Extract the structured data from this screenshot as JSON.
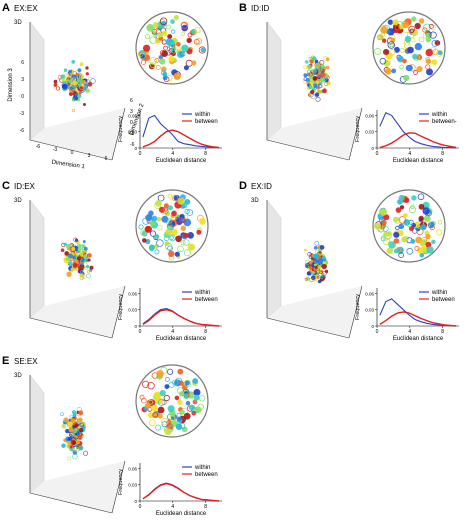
{
  "chart_data": [
    {
      "type": "scatter",
      "panel_label": "A",
      "title": "EX:EX",
      "view_tag": "3D",
      "axis3d": {
        "x_label": "Dimension 1",
        "y_label": "Dimension 2",
        "z_label": "Dimension 3",
        "x_ticks": [
          "-6",
          "-3",
          "0",
          "3",
          "6"
        ],
        "y_ticks": [
          "6",
          "3",
          "0",
          "-3",
          "-6"
        ],
        "z_ticks": [
          "-6",
          "-3",
          "0",
          "3",
          "6"
        ]
      },
      "histogram": {
        "xlabel": "Euclidean distance",
        "ylabel": "Frequency",
        "x_ticks": [
          "0",
          "4",
          "8"
        ],
        "y_ticks": [
          "0",
          "0.03",
          "0.06"
        ],
        "xlim": [
          0,
          10
        ],
        "ylim": [
          0,
          0.07
        ],
        "series": [
          {
            "name": "within",
            "color": "#3040c0",
            "values": [
              0.02,
              0.055,
              0.06,
              0.045,
              0.035,
              0.025,
              0.012,
              0.008,
              0.006,
              0.004,
              0.003,
              0.002,
              0.001,
              0.001
            ]
          },
          {
            "name": "between",
            "color": "#e02020",
            "values": [
              0.002,
              0.006,
              0.012,
              0.022,
              0.03,
              0.033,
              0.03,
              0.024,
              0.018,
              0.012,
              0.007,
              0.004,
              0.002,
              0.001
            ]
          }
        ]
      },
      "cloud": {
        "cx": 75,
        "cy": 85,
        "spread_x": 22,
        "spread_y": 26
      }
    },
    {
      "type": "scatter",
      "panel_label": "B",
      "title": "ID:ID",
      "view_tag": "",
      "axis3d": {
        "x_label": "",
        "y_label": "",
        "z_label": "",
        "x_ticks": [],
        "y_ticks": [],
        "z_ticks": []
      },
      "histogram": {
        "xlabel": "Euclidean distance",
        "ylabel": "Frequency",
        "x_ticks": [
          "0",
          "4",
          "8"
        ],
        "y_ticks": [
          "0",
          "0.03",
          "0.06"
        ],
        "xlim": [
          0,
          10
        ],
        "ylim": [
          0,
          0.07
        ],
        "series": [
          {
            "name": "within",
            "color": "#3040c0",
            "values": [
              0.04,
              0.065,
              0.06,
              0.045,
              0.03,
              0.02,
              0.012,
              0.008,
              0.005,
              0.003,
              0.002,
              0.001,
              0.001,
              0.0
            ]
          },
          {
            "name": "between-",
            "color": "#e02020",
            "values": [
              0.001,
              0.004,
              0.009,
              0.016,
              0.024,
              0.028,
              0.027,
              0.022,
              0.017,
              0.012,
              0.008,
              0.005,
              0.003,
              0.001
            ]
          }
        ]
      },
      "cloud": {
        "cx": 80,
        "cy": 75,
        "spread_x": 16,
        "spread_y": 28
      }
    },
    {
      "type": "scatter",
      "panel_label": "C",
      "title": "ID:EX",
      "view_tag": "3D",
      "axis3d": {
        "x_label": "",
        "y_label": "",
        "z_label": "",
        "x_ticks": [],
        "y_ticks": [],
        "z_ticks": []
      },
      "histogram": {
        "xlabel": "Euclidean distance",
        "ylabel": "Frequency",
        "x_ticks": [
          "0",
          "4",
          "8"
        ],
        "y_ticks": [
          "0",
          "0.03",
          "0.06"
        ],
        "xlim": [
          0,
          10
        ],
        "ylim": [
          0,
          0.07
        ],
        "series": [
          {
            "name": "within",
            "color": "#3040c0",
            "values": [
              0.004,
              0.012,
              0.022,
              0.03,
              0.032,
              0.028,
              0.02,
              0.014,
              0.009,
              0.005,
              0.003,
              0.002,
              0.001,
              0.0
            ]
          },
          {
            "name": "between",
            "color": "#e02020",
            "values": [
              0.003,
              0.01,
              0.02,
              0.028,
              0.03,
              0.027,
              0.02,
              0.014,
              0.009,
              0.005,
              0.003,
              0.002,
              0.001,
              0.0
            ]
          }
        ]
      },
      "cloud": {
        "cx": 78,
        "cy": 80,
        "spread_x": 18,
        "spread_y": 26
      }
    },
    {
      "type": "scatter",
      "panel_label": "D",
      "title": "EX:ID",
      "view_tag": "3D",
      "axis3d": {
        "x_label": "",
        "y_label": "",
        "z_label": "",
        "x_ticks": [],
        "y_ticks": [],
        "z_ticks": []
      },
      "histogram": {
        "xlabel": "Euclidean distance",
        "ylabel": "Frequency",
        "x_ticks": [
          "0",
          "4",
          "8"
        ],
        "y_ticks": [
          "0",
          "0.03",
          "0.06"
        ],
        "xlim": [
          0,
          10
        ],
        "ylim": [
          0,
          0.07
        ],
        "series": [
          {
            "name": "within",
            "color": "#3040c0",
            "values": [
              0.02,
              0.045,
              0.05,
              0.04,
              0.03,
              0.02,
              0.012,
              0.008,
              0.005,
              0.003,
              0.002,
              0.001,
              0.001,
              0.0
            ]
          },
          {
            "name": "between",
            "color": "#e02020",
            "values": [
              0.003,
              0.01,
              0.018,
              0.024,
              0.026,
              0.024,
              0.019,
              0.014,
              0.01,
              0.006,
              0.004,
              0.002,
              0.001,
              0.0
            ]
          }
        ]
      },
      "cloud": {
        "cx": 80,
        "cy": 85,
        "spread_x": 14,
        "spread_y": 24
      }
    },
    {
      "type": "scatter",
      "panel_label": "E",
      "title": "SE:EX",
      "view_tag": "3D",
      "axis3d": {
        "x_label": "",
        "y_label": "",
        "z_label": "",
        "x_ticks": [],
        "y_ticks": [],
        "z_ticks": []
      },
      "histogram": {
        "xlabel": "Euclidean distance",
        "ylabel": "Frequency",
        "x_ticks": [
          "0",
          "4",
          "8"
        ],
        "y_ticks": [
          "0",
          "0.03",
          "0.06"
        ],
        "xlim": [
          0,
          10
        ],
        "ylim": [
          0,
          0.07
        ],
        "series": [
          {
            "name": "within",
            "color": "#3040c0",
            "values": [
              0.004,
              0.012,
              0.022,
              0.03,
              0.033,
              0.03,
              0.024,
              0.016,
              0.01,
              0.006,
              0.003,
              0.002,
              0.001,
              0.0
            ]
          },
          {
            "name": "between",
            "color": "#e02020",
            "values": [
              0.004,
              0.011,
              0.021,
              0.029,
              0.032,
              0.029,
              0.023,
              0.016,
              0.01,
              0.006,
              0.003,
              0.002,
              0.001,
              0.0
            ]
          }
        ]
      },
      "cloud": {
        "cx": 75,
        "cy": 80,
        "spread_x": 16,
        "spread_y": 28
      }
    }
  ],
  "palette": [
    "#1f3fd0",
    "#2e7fe8",
    "#27b5e0",
    "#35d0c0",
    "#7ee06a",
    "#c8e040",
    "#f0e020",
    "#f5a020",
    "#f06020",
    "#e02020",
    "#a01818"
  ]
}
